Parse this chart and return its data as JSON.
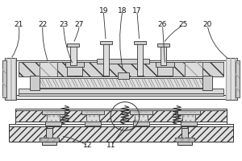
{
  "figsize": [
    3.0,
    2.0
  ],
  "dpi": 100,
  "lc": "#333333",
  "fc_light": "#e8e8e8",
  "fc_mid": "#cccccc",
  "fc_dark": "#aaaaaa",
  "fc_white": "#ffffff",
  "hatch_diag": "////",
  "font_size": 6.5
}
